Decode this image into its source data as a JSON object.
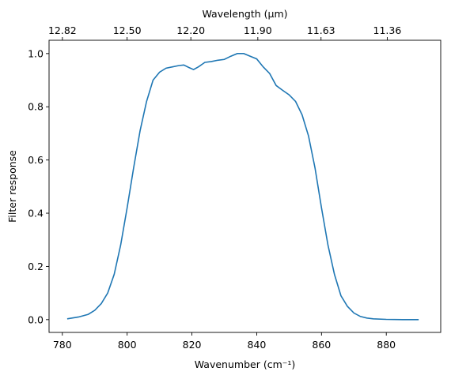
{
  "chart_data": {
    "type": "line",
    "xlabel": "Wavenumber (cm⁻¹)",
    "ylabel": "Filter response",
    "x2label": "Wavelength (μm)",
    "x": [
      781.5,
      785,
      788,
      790,
      792,
      794,
      796,
      798,
      800,
      802,
      804,
      806,
      808,
      810,
      812,
      814,
      816,
      817.5,
      819,
      820.5,
      822,
      824,
      826,
      828,
      830,
      832,
      834,
      836,
      838,
      840,
      842,
      844,
      846,
      848,
      850,
      852,
      854,
      856,
      858,
      860,
      862,
      864,
      866,
      868,
      870,
      872,
      874,
      876,
      880,
      885,
      890
    ],
    "series": [
      {
        "color": "#1f77b4",
        "values": [
          0.003,
          0.01,
          0.02,
          0.035,
          0.06,
          0.1,
          0.17,
          0.28,
          0.42,
          0.57,
          0.71,
          0.82,
          0.9,
          0.93,
          0.945,
          0.95,
          0.955,
          0.957,
          0.948,
          0.94,
          0.95,
          0.967,
          0.97,
          0.975,
          0.978,
          0.99,
          1.0,
          1.0,
          0.99,
          0.98,
          0.95,
          0.925,
          0.88,
          0.862,
          0.845,
          0.82,
          0.77,
          0.69,
          0.57,
          0.42,
          0.28,
          0.17,
          0.09,
          0.05,
          0.025,
          0.012,
          0.006,
          0.003,
          0.001,
          0.0,
          0.0
        ]
      }
    ],
    "xlim": [
      775.9,
      896.8
    ],
    "xticks": [
      780,
      800,
      820,
      840,
      860,
      880
    ],
    "ylim": [
      -0.048,
      1.05
    ],
    "yticks": [
      {
        "value": 0,
        "label": "0.0"
      },
      0.2,
      0.4,
      0.6,
      0.8,
      {
        "value": 1,
        "label": "1.0"
      }
    ],
    "x2lim": [
      12.888,
      11.151
    ],
    "x2_scale": "reciprocal",
    "x2ticks": [
      12.82,
      {
        "value": 12.5,
        "label": "12.50"
      },
      {
        "value": 12.2,
        "label": "12.20"
      },
      {
        "value": 11.9,
        "label": "11.90"
      },
      11.63,
      11.36
    ]
  }
}
